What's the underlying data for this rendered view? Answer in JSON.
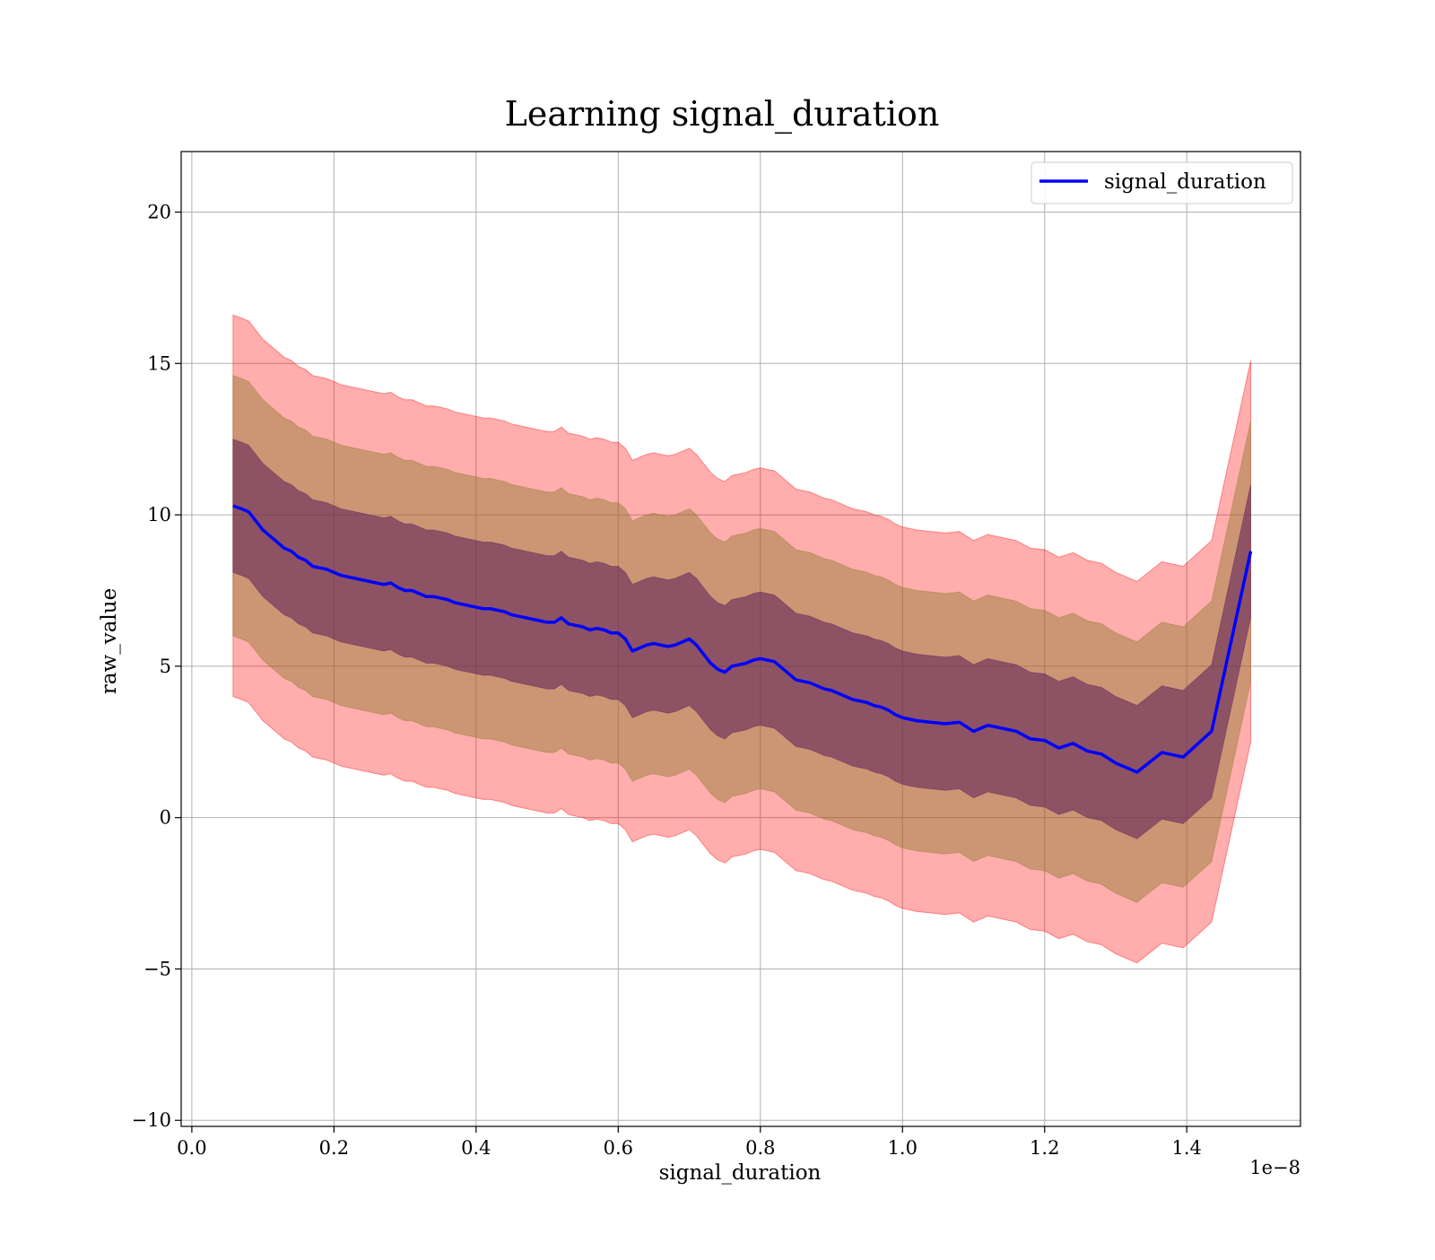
{
  "chart_data": {
    "type": "area",
    "title": "Learning signal_duration",
    "xlabel": "signal_duration",
    "ylabel": "raw_value",
    "x_offset_label": "1e−8",
    "xlim": [
      -0.015,
      1.56
    ],
    "ylim": [
      -10.2,
      22.0
    ],
    "grid": true,
    "legend": {
      "placement": "top-right",
      "entries": [
        "signal_duration"
      ]
    },
    "x_ticks": [
      0.0,
      0.2,
      0.4,
      0.6,
      0.8,
      1.0,
      1.2,
      1.4
    ],
    "x_tick_labels": [
      "0.0",
      "0.2",
      "0.4",
      "0.6",
      "0.8",
      "1.0",
      "1.2",
      "1.4"
    ],
    "y_ticks": [
      -10,
      -5,
      0,
      5,
      10,
      15,
      20
    ],
    "y_tick_labels": [
      "−10",
      "−5",
      "0",
      "5",
      "10",
      "15",
      "20"
    ],
    "colors": {
      "line": "#0000ff",
      "band_outer": "#ff0000",
      "band_middle": "#8f7a2e",
      "band_inner": "#5a1e5a"
    },
    "band_offsets": [
      2.2,
      4.3,
      6.3
    ],
    "series": [
      {
        "name": "signal_duration",
        "x": [
          0.058,
          0.07,
          0.08,
          0.09,
          0.1,
          0.11,
          0.12,
          0.13,
          0.14,
          0.15,
          0.16,
          0.17,
          0.18,
          0.19,
          0.2,
          0.21,
          0.22,
          0.23,
          0.24,
          0.25,
          0.26,
          0.27,
          0.28,
          0.29,
          0.3,
          0.31,
          0.32,
          0.33,
          0.34,
          0.35,
          0.36,
          0.37,
          0.38,
          0.39,
          0.4,
          0.41,
          0.42,
          0.43,
          0.44,
          0.45,
          0.46,
          0.47,
          0.48,
          0.49,
          0.5,
          0.51,
          0.52,
          0.53,
          0.54,
          0.55,
          0.56,
          0.57,
          0.58,
          0.59,
          0.6,
          0.61,
          0.62,
          0.63,
          0.64,
          0.65,
          0.66,
          0.67,
          0.68,
          0.69,
          0.7,
          0.71,
          0.72,
          0.73,
          0.74,
          0.75,
          0.76,
          0.77,
          0.78,
          0.79,
          0.8,
          0.81,
          0.82,
          0.83,
          0.84,
          0.85,
          0.86,
          0.87,
          0.88,
          0.89,
          0.9,
          0.91,
          0.92,
          0.93,
          0.94,
          0.95,
          0.96,
          0.97,
          0.98,
          0.99,
          1.0,
          1.02,
          1.04,
          1.06,
          1.08,
          1.1,
          1.12,
          1.14,
          1.16,
          1.18,
          1.2,
          1.22,
          1.24,
          1.26,
          1.28,
          1.3,
          1.33,
          1.365,
          1.395,
          1.435,
          1.49
        ],
        "y": [
          10.3,
          10.2,
          10.1,
          9.8,
          9.5,
          9.3,
          9.1,
          8.9,
          8.8,
          8.6,
          8.5,
          8.3,
          8.25,
          8.2,
          8.1,
          8.0,
          7.95,
          7.9,
          7.85,
          7.8,
          7.75,
          7.7,
          7.75,
          7.6,
          7.5,
          7.5,
          7.4,
          7.3,
          7.3,
          7.25,
          7.2,
          7.1,
          7.05,
          7.0,
          6.95,
          6.9,
          6.9,
          6.85,
          6.8,
          6.7,
          6.65,
          6.6,
          6.55,
          6.5,
          6.45,
          6.45,
          6.6,
          6.4,
          6.35,
          6.3,
          6.2,
          6.25,
          6.2,
          6.1,
          6.1,
          5.9,
          5.5,
          5.6,
          5.7,
          5.75,
          5.7,
          5.65,
          5.7,
          5.8,
          5.9,
          5.7,
          5.4,
          5.1,
          4.9,
          4.8,
          5.0,
          5.05,
          5.1,
          5.2,
          5.25,
          5.2,
          5.15,
          4.95,
          4.75,
          4.55,
          4.5,
          4.45,
          4.35,
          4.25,
          4.2,
          4.1,
          4.0,
          3.9,
          3.85,
          3.8,
          3.7,
          3.65,
          3.55,
          3.4,
          3.3,
          3.2,
          3.15,
          3.1,
          3.15,
          2.85,
          3.05,
          2.95,
          2.85,
          2.6,
          2.55,
          2.3,
          2.45,
          2.2,
          2.1,
          1.8,
          1.5,
          2.15,
          2.0,
          2.85,
          8.8
        ]
      }
    ]
  }
}
